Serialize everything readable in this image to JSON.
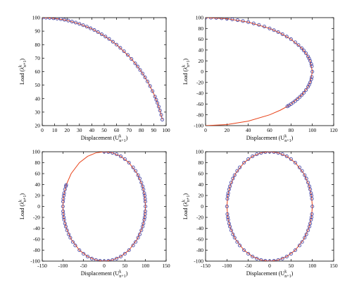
{
  "chart_data": [
    {
      "type": "line",
      "xlabel_main": "Displacement (U",
      "xlabel_sup": "k",
      "xlabel_sub": "n+1",
      "xlabel_close": ")",
      "ylabel_main": "Load (λ",
      "ylabel_sup": "k",
      "ylabel_sub": "n+1",
      "ylabel_close": ")",
      "xlim": [
        0,
        100
      ],
      "ylim": [
        20,
        100
      ],
      "xticks": [
        "0",
        "10",
        "20",
        "30",
        "40",
        "50",
        "60",
        "70",
        "80",
        "90",
        "100"
      ],
      "yticks": [
        "20",
        "30",
        "40",
        "50",
        "60",
        "70",
        "80",
        "90",
        "100"
      ],
      "grid": false,
      "series": [
        {
          "style": "line",
          "color": "#e8431a",
          "x": [
            0,
            10,
            20,
            30,
            40,
            50,
            60,
            70,
            75,
            80,
            85,
            90,
            93,
            95,
            96.9
          ],
          "y": [
            100,
            99.5,
            98,
            95.4,
            91.7,
            86.6,
            80,
            71.4,
            66.1,
            60,
            52.7,
            43.6,
            36.8,
            31.2,
            24.5
          ]
        },
        {
          "style": "markers",
          "color": "#4a4aa8",
          "x": [
            0,
            3,
            6,
            9,
            12,
            15,
            18,
            21,
            24,
            27,
            30,
            33,
            36,
            39,
            42,
            45,
            48,
            51,
            54,
            57,
            60,
            63,
            66,
            69,
            72,
            75,
            77,
            79,
            81,
            83,
            85,
            87,
            89,
            91,
            92,
            93,
            94,
            95,
            96,
            96.9
          ],
          "y": [
            100,
            99.95,
            99.8,
            99.6,
            99.3,
            98.9,
            98.4,
            97.8,
            97.1,
            96.3,
            95.4,
            94.4,
            93.3,
            92.1,
            90.8,
            89.3,
            87.7,
            86,
            84.2,
            82.1,
            80,
            77.6,
            75.1,
            72.4,
            69.4,
            66.1,
            63.8,
            61.2,
            58.6,
            55.7,
            52.7,
            49.3,
            45.6,
            41.5,
            39.2,
            36.8,
            34.1,
            31.2,
            28,
            24.5
          ]
        }
      ]
    },
    {
      "type": "line",
      "xlabel_main": "Displacement (U",
      "xlabel_sup": "k",
      "xlabel_sub": "n+1",
      "xlabel_close": ")",
      "ylabel_main": "Load (λ",
      "ylabel_sup": "k",
      "ylabel_sub": "n+1",
      "ylabel_close": ")",
      "xlim": [
        0,
        120
      ],
      "ylim": [
        -100,
        100
      ],
      "xticks": [
        "0",
        "20",
        "40",
        "60",
        "80",
        "100",
        "120"
      ],
      "yticks": [
        "-100",
        "-80",
        "-60",
        "-40",
        "-20",
        "0",
        "20",
        "40",
        "60",
        "80",
        "100"
      ],
      "grid": false,
      "series": [
        {
          "style": "line",
          "color": "#e8431a",
          "x": [
            0,
            20,
            40,
            60,
            70,
            80,
            90,
            95,
            98,
            100,
            98,
            95,
            90,
            80,
            76.6,
            70,
            60,
            40,
            20,
            0
          ],
          "y": [
            100,
            98,
            91.7,
            80,
            71.4,
            60,
            43.6,
            31.2,
            19.9,
            0,
            -19.9,
            -31.2,
            -43.6,
            -60,
            -64.3,
            -71.4,
            -80,
            -91.7,
            -98,
            -100
          ]
        },
        {
          "style": "markers",
          "color": "#4a4aa8",
          "x": [
            0,
            5,
            10,
            15,
            20,
            25,
            30,
            35,
            40,
            45,
            50,
            55,
            60,
            64,
            68,
            72,
            76,
            80,
            84,
            87,
            90,
            92,
            94,
            96,
            97,
            98,
            99,
            99.5,
            100,
            99.5,
            99,
            98,
            97,
            96,
            94,
            92,
            90,
            88,
            86,
            84,
            82,
            80,
            78,
            76.6
          ],
          "y": [
            100,
            99.9,
            99.5,
            98.9,
            98,
            96.8,
            95.4,
            93.7,
            91.7,
            89.3,
            86.6,
            83.5,
            80,
            76.8,
            73.3,
            69.4,
            64.9,
            60,
            54.3,
            49.3,
            43.6,
            39.2,
            34.1,
            28,
            24.3,
            19.9,
            14.1,
            10,
            0,
            -10,
            -14.1,
            -19.9,
            -24.3,
            -28,
            -34.1,
            -39.2,
            -43.6,
            -47.5,
            -51,
            -54.3,
            -57.2,
            -60,
            -62.6,
            -64.3
          ]
        }
      ]
    },
    {
      "type": "line",
      "xlabel_main": "Displacement (U",
      "xlabel_sup": "k",
      "xlabel_sub": "n+1",
      "xlabel_close": ")",
      "ylabel_main": "Load (λ",
      "ylabel_sup": "k",
      "ylabel_sub": "n+1",
      "ylabel_close": ")",
      "xlim": [
        -150,
        150
      ],
      "ylim": [
        -100,
        100
      ],
      "xticks": [
        "-150",
        "-100",
        "-50",
        "0",
        "50",
        "100",
        "150"
      ],
      "yticks": [
        "-100",
        "-80",
        "-60",
        "-40",
        "-20",
        "0",
        "20",
        "40",
        "60",
        "80",
        "100"
      ],
      "grid": false,
      "series": [
        {
          "style": "line",
          "color": "#e8431a",
          "x": [
            0,
            20,
            40,
            60,
            80,
            92,
            98,
            100,
            98,
            92,
            80,
            60,
            40,
            20,
            0,
            -20,
            -40,
            -60,
            -80,
            -92,
            -98,
            -100,
            -98,
            -92,
            -80,
            -60,
            -40,
            -20,
            0
          ],
          "y": [
            100,
            98,
            91.7,
            80,
            60,
            39.2,
            19.9,
            0,
            -19.9,
            -39.2,
            -60,
            -80,
            -91.7,
            -98,
            -100,
            -98,
            -91.7,
            -80,
            -60,
            -39.2,
            -19.9,
            0,
            19.9,
            39.2,
            60,
            80,
            91.7,
            98,
            100
          ]
        },
        {
          "style": "markers",
          "color": "#4a4aa8",
          "x": [
            0,
            10,
            20,
            30,
            40,
            50,
            60,
            70,
            76,
            82,
            86,
            90,
            93,
            95,
            97,
            98,
            99,
            99.6,
            100,
            99.6,
            99,
            98,
            97,
            95,
            93,
            90,
            86,
            82,
            76,
            70,
            60,
            50,
            40,
            30,
            20,
            10,
            0,
            -10,
            -20,
            -30,
            -40,
            -50,
            -60,
            -70,
            -76,
            -82,
            -86,
            -90,
            -93,
            -95,
            -97,
            -98,
            -99,
            -99.6,
            -100,
            -99.6,
            -99,
            -98,
            -97,
            -95,
            -93,
            -92
          ],
          "y": [
            100,
            99.5,
            98,
            95.4,
            91.7,
            86.6,
            80,
            71.4,
            65,
            57.2,
            51,
            43.6,
            36.8,
            31.2,
            24.3,
            19.9,
            14.1,
            8.9,
            0,
            -8.9,
            -14.1,
            -19.9,
            -24.3,
            -31.2,
            -36.8,
            -43.6,
            -51,
            -57.2,
            -65,
            -71.4,
            -80,
            -86.6,
            -91.7,
            -95.4,
            -98,
            -99.5,
            -100,
            -99.5,
            -98,
            -95.4,
            -91.7,
            -86.6,
            -80,
            -71.4,
            -65,
            -57.2,
            -51,
            -43.6,
            -36.8,
            -31.2,
            -24.3,
            -19.9,
            -14.1,
            -8.9,
            0,
            8.9,
            14.1,
            19.9,
            24.3,
            31.2,
            36.8,
            39.2
          ]
        }
      ]
    },
    {
      "type": "line",
      "xlabel_main": "Displacement (U",
      "xlabel_sup": "k",
      "xlabel_sub": "n+1",
      "xlabel_close": ")",
      "ylabel_main": "Load (λ",
      "ylabel_sup": "k",
      "ylabel_sub": "n+1",
      "ylabel_close": ")",
      "xlim": [
        -150,
        150
      ],
      "ylim": [
        -100,
        100
      ],
      "xticks": [
        "-150",
        "-100",
        "-50",
        "0",
        "50",
        "100",
        "150"
      ],
      "yticks": [
        "-100",
        "-80",
        "-60",
        "-40",
        "-20",
        "0",
        "20",
        "40",
        "60",
        "80",
        "100"
      ],
      "grid": false,
      "series": [
        {
          "style": "line",
          "color": "#e8431a",
          "x": [
            0,
            20,
            40,
            60,
            80,
            92,
            98,
            100,
            98,
            92,
            80,
            60,
            40,
            20,
            0,
            -20,
            -40,
            -60,
            -80,
            -92,
            -98,
            -100,
            -98,
            -92,
            -80,
            -60,
            -40,
            -20,
            0
          ],
          "y": [
            100,
            98,
            91.7,
            80,
            60,
            39.2,
            19.9,
            0,
            -19.9,
            -39.2,
            -60,
            -80,
            -91.7,
            -98,
            -100,
            -98,
            -91.7,
            -80,
            -60,
            -39.2,
            -19.9,
            0,
            19.9,
            39.2,
            60,
            80,
            91.7,
            98,
            100
          ]
        },
        {
          "style": "markers",
          "color": "#4a4aa8",
          "x": [
            0,
            10,
            20,
            30,
            40,
            50,
            60,
            70,
            76,
            82,
            86,
            90,
            93,
            95,
            97,
            98,
            99,
            100,
            99,
            98,
            97,
            95,
            93,
            90,
            86,
            82,
            76,
            70,
            60,
            50,
            40,
            30,
            20,
            10,
            0,
            -10,
            -20,
            -30,
            -40,
            -50,
            -60,
            -70,
            -76,
            -82,
            -86,
            -90,
            -93,
            -95,
            -97,
            -98,
            -99,
            -100,
            -99,
            -98,
            -97,
            -95,
            -93,
            -90,
            -86,
            -82,
            -76,
            -70,
            -60,
            -50,
            -40,
            -30,
            -20,
            -10
          ],
          "y": [
            100,
            99.5,
            98,
            95.4,
            91.7,
            86.6,
            80,
            71.4,
            65,
            57.2,
            51,
            43.6,
            36.8,
            31.2,
            24.3,
            19.9,
            14.1,
            0,
            -14.1,
            -19.9,
            -24.3,
            -31.2,
            -36.8,
            -43.6,
            -51,
            -57.2,
            -65,
            -71.4,
            -80,
            -86.6,
            -91.7,
            -95.4,
            -98,
            -99.5,
            -100,
            -99.5,
            -98,
            -95.4,
            -91.7,
            -86.6,
            -80,
            -71.4,
            -65,
            -57.2,
            -51,
            -43.6,
            -36.8,
            -31.2,
            -24.3,
            -19.9,
            -14.1,
            0,
            14.1,
            19.9,
            24.3,
            31.2,
            36.8,
            43.6,
            51,
            57.2,
            65,
            71.4,
            80,
            86.6,
            91.7,
            95.4,
            98,
            99.5
          ]
        }
      ]
    }
  ]
}
